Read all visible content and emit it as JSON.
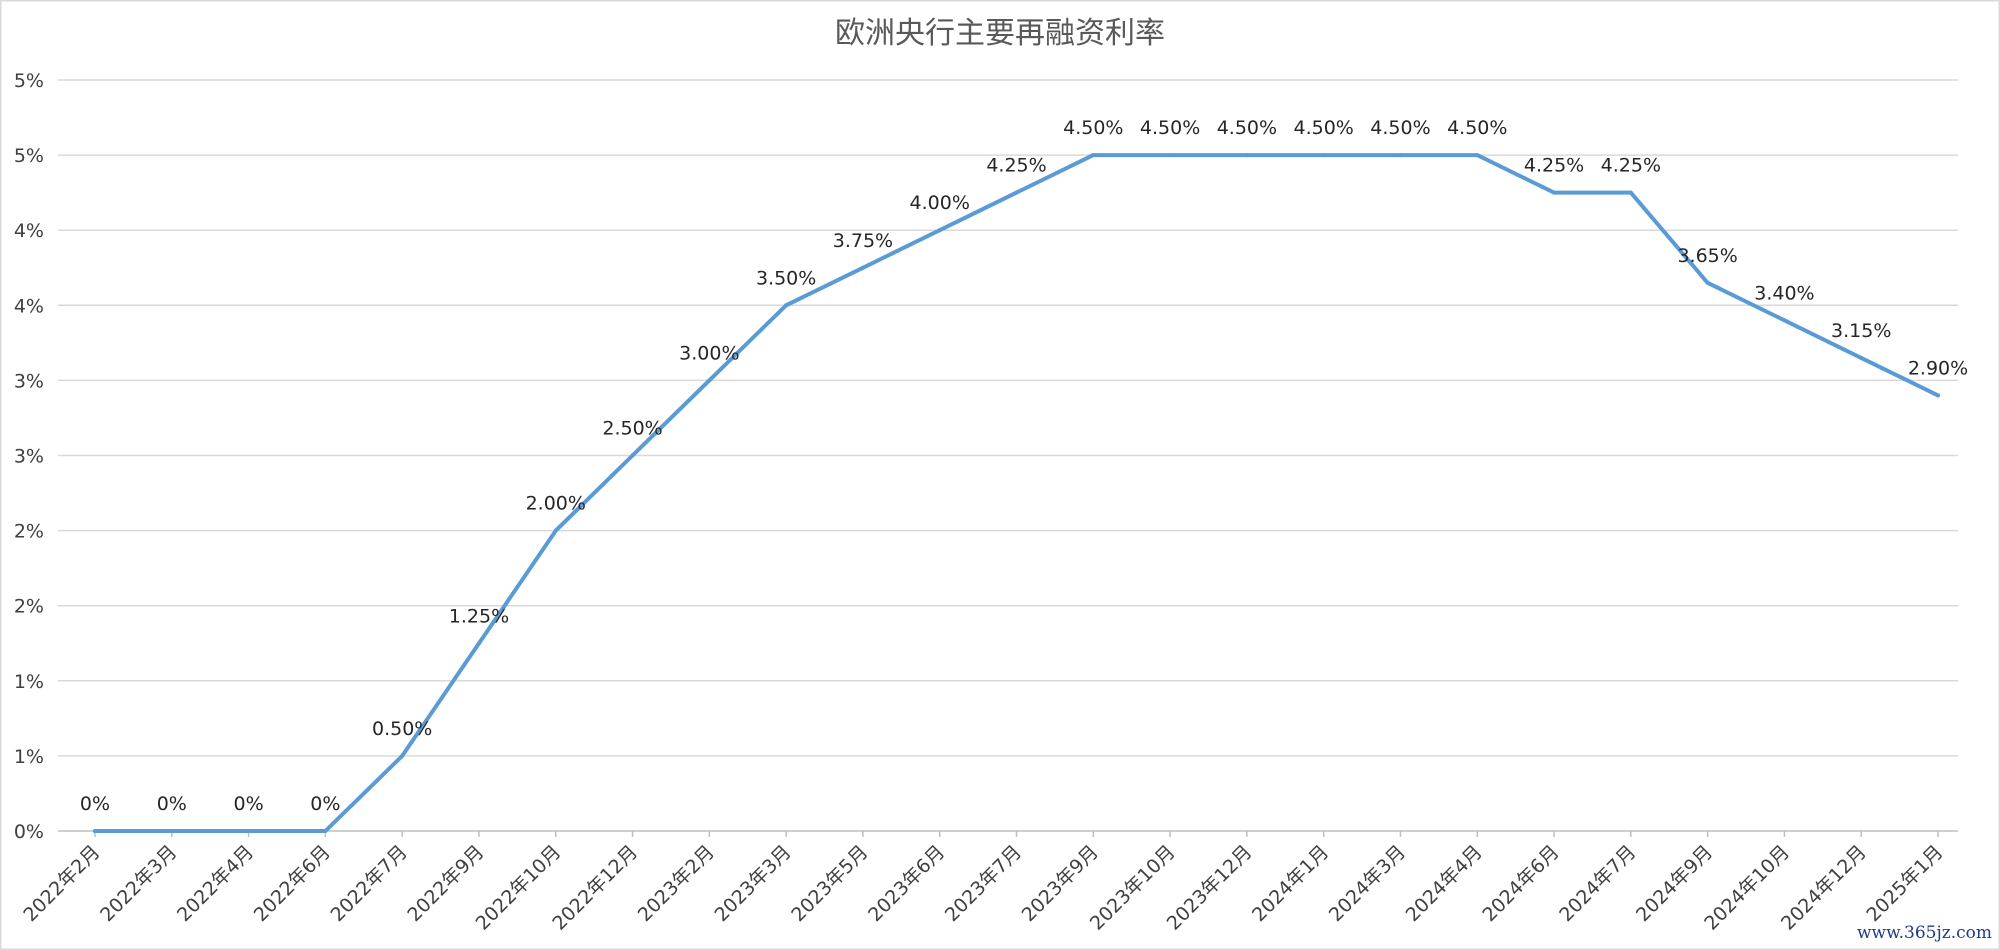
{
  "chart_data": {
    "type": "line",
    "title": "欧洲央行主要再融资利率",
    "categories": [
      "2022年2月",
      "2022年3月",
      "2022年4月",
      "2022年6月",
      "2022年7月",
      "2022年9月",
      "2022年10月",
      "2022年12月",
      "2023年2月",
      "2023年3月",
      "2023年5月",
      "2023年6月",
      "2023年7月",
      "2023年9月",
      "2023年10月",
      "2023年12月",
      "2024年1月",
      "2024年3月",
      "2024年4月",
      "2024年6月",
      "2024年7月",
      "2024年9月",
      "2024年10月",
      "2024年12月",
      "2025年1月"
    ],
    "series": [
      {
        "color": "#5b9bd5",
        "values": [
          0,
          0,
          0,
          0,
          0.5,
          1.25,
          2.0,
          2.5,
          3.0,
          3.5,
          3.75,
          4.0,
          4.25,
          4.5,
          4.5,
          4.5,
          4.5,
          4.5,
          4.5,
          4.25,
          4.25,
          3.65,
          3.4,
          3.15,
          2.9
        ],
        "labels": [
          "0%",
          "0%",
          "0%",
          "0%",
          "0.50%",
          "1.25%",
          "2.00%",
          "2.50%",
          "3.00%",
          "3.50%",
          "3.75%",
          "4.00%",
          "4.25%",
          "4.50%",
          "4.50%",
          "4.50%",
          "4.50%",
          "4.50%",
          "4.50%",
          "4.25%",
          "4.25%",
          "3.65%",
          "3.40%",
          "3.15%",
          "2.90%"
        ]
      }
    ],
    "y_ticks": [
      "0%",
      "1%",
      "1%",
      "2%",
      "2%",
      "3%",
      "3%",
      "4%",
      "4%",
      "5%",
      "5%"
    ],
    "ylim": [
      0,
      5.0
    ],
    "grid": true,
    "legend": "none",
    "xlabel": "",
    "ylabel": ""
  },
  "watermark": "www.365jz.com"
}
